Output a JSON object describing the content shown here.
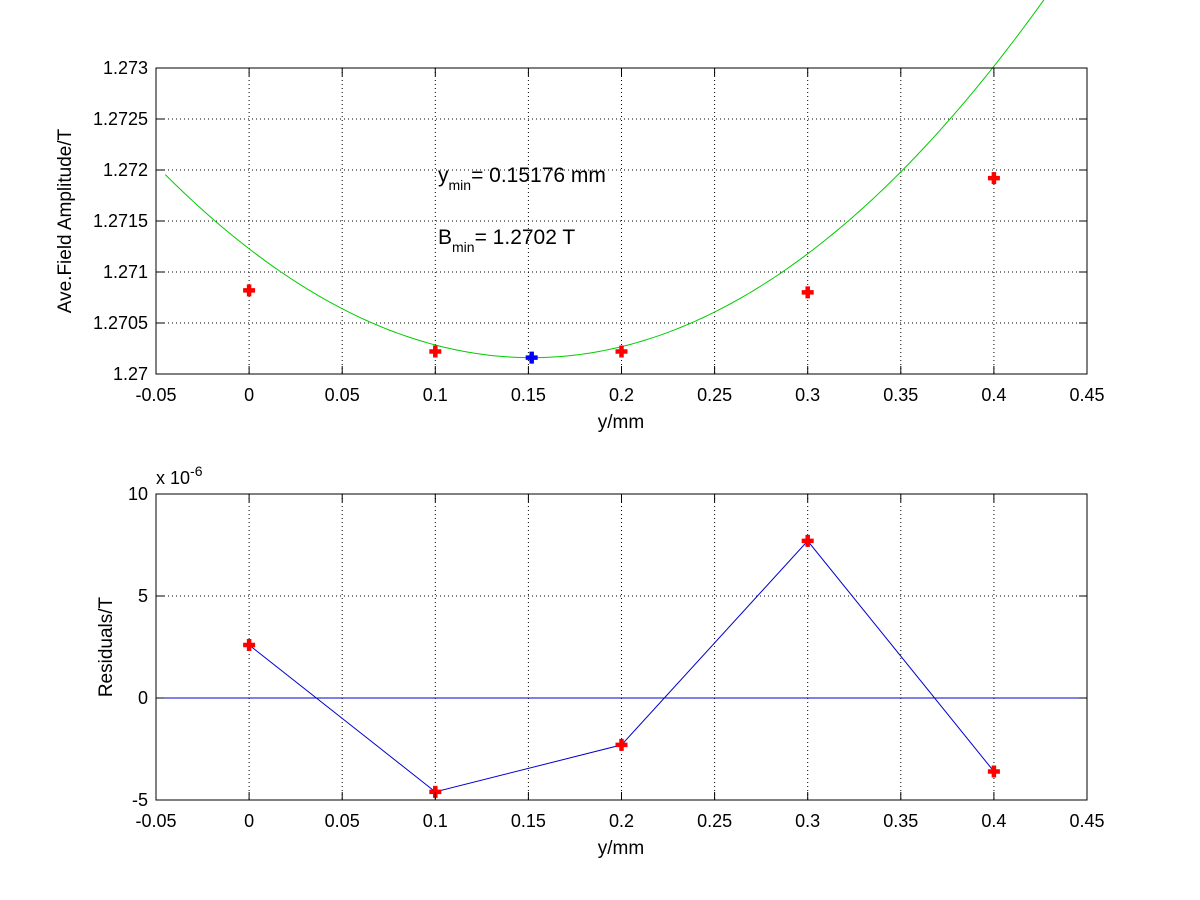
{
  "chart_data": [
    {
      "type": "scatter",
      "xlabel": "y/mm",
      "ylabel": "Ave.Field Amplitude/T",
      "xlim": [
        -0.05,
        0.45
      ],
      "ylim": [
        1.27,
        1.273
      ],
      "xticks": [
        -0.05,
        0,
        0.05,
        0.1,
        0.15,
        0.2,
        0.25,
        0.3,
        0.35,
        0.4,
        0.45
      ],
      "xtick_labels": [
        "-0.05",
        "0",
        "0.05",
        "0.1",
        "0.15",
        "0.2",
        "0.25",
        "0.3",
        "0.35",
        "0.4",
        "0.45"
      ],
      "yticks": [
        1.27,
        1.2705,
        1.271,
        1.2715,
        1.272,
        1.2725,
        1.273
      ],
      "ytick_labels": [
        "1.27",
        "1.2705",
        "1.271",
        "1.2715",
        "1.272",
        "1.2725",
        "1.273"
      ],
      "grid": true,
      "series": [
        {
          "marker": "plus",
          "color": "#ff0000",
          "x": [
            0,
            0.1,
            0.2,
            0.3,
            0.4
          ],
          "y": [
            1.27082,
            1.27022,
            1.27022,
            1.2708,
            1.27192
          ]
        },
        {
          "marker": "plus",
          "color": "#0000ff",
          "x": [
            0.15176
          ],
          "y": [
            1.27016
          ]
        },
        {
          "style": "line",
          "color": "#00cc00",
          "fit": "quadratic",
          "vertex_x": 0.15176,
          "vertex_y": 1.27016,
          "curvature": 0.04636,
          "x_range": [
            -0.045,
            0.445
          ]
        }
      ],
      "annotations": {
        "ymin_base": "y",
        "ymin_sub": "min",
        "ymin_value": "= 0.15176 mm",
        "bmin_base": "B",
        "bmin_sub": "min",
        "bmin_value": "= 1.2702 T"
      }
    },
    {
      "type": "line",
      "xlabel": "y/mm",
      "ylabel": "Residuals/T",
      "xlim": [
        -0.05,
        0.45
      ],
      "ylim": [
        -5,
        10
      ],
      "xticks": [
        -0.05,
        0,
        0.05,
        0.1,
        0.15,
        0.2,
        0.25,
        0.3,
        0.35,
        0.4,
        0.45
      ],
      "xtick_labels": [
        "-0.05",
        "0",
        "0.05",
        "0.1",
        "0.15",
        "0.2",
        "0.25",
        "0.3",
        "0.35",
        "0.4",
        "0.45"
      ],
      "yticks": [
        -5,
        0,
        5,
        10
      ],
      "ytick_labels": [
        "-5",
        "0",
        "5",
        "10"
      ],
      "scale_base": "x 10",
      "scale_exp": "-6",
      "grid": true,
      "series": [
        {
          "marker": "plus",
          "color": "#ff0000",
          "line_color": "#0000cc",
          "x": [
            0,
            0.1,
            0.2,
            0.3,
            0.4
          ],
          "y": [
            2.6,
            -4.6,
            -2.3,
            7.7,
            -3.6
          ]
        },
        {
          "style": "line",
          "color": "#0000cc",
          "x": [
            -0.05,
            0.45
          ],
          "y": [
            0,
            0
          ]
        }
      ]
    }
  ]
}
